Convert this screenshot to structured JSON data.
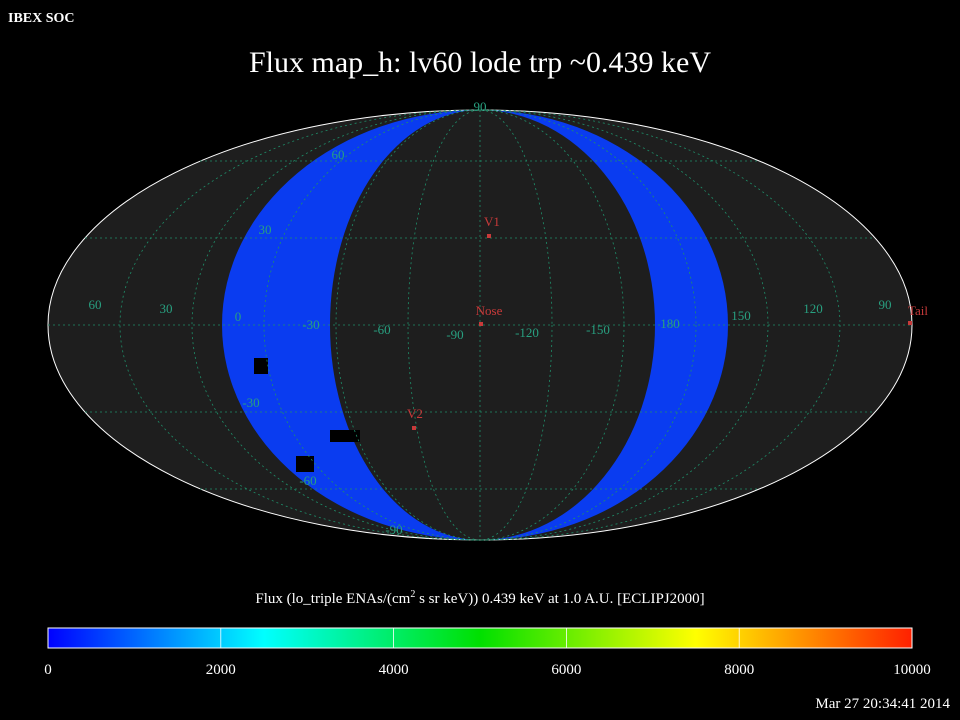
{
  "header": "IBEX SOC",
  "title": "Flux   map_h: lv60 lode trp ~0.439 keV",
  "grid_labels": [
    "60",
    "30",
    "0",
    "-30",
    "-60",
    "-90",
    "-120",
    "-150",
    "180",
    "150",
    "120",
    "90",
    "90",
    "60",
    "30",
    "-30",
    "-60",
    "-90"
  ],
  "markers": [
    "V1",
    "Nose",
    "V2",
    "Tail"
  ],
  "colorbar": {
    "title": [
      "Flux (lo_triple ENAs/(cm",
      "2",
      " s sr keV))  0.439 keV at 1.0 A.U. [ECLIPJ2000]"
    ],
    "ticks": [
      0,
      2000,
      4000,
      6000,
      8000,
      10000
    ]
  },
  "timestamp": "Mar 27 20:34:41 2014"
}
